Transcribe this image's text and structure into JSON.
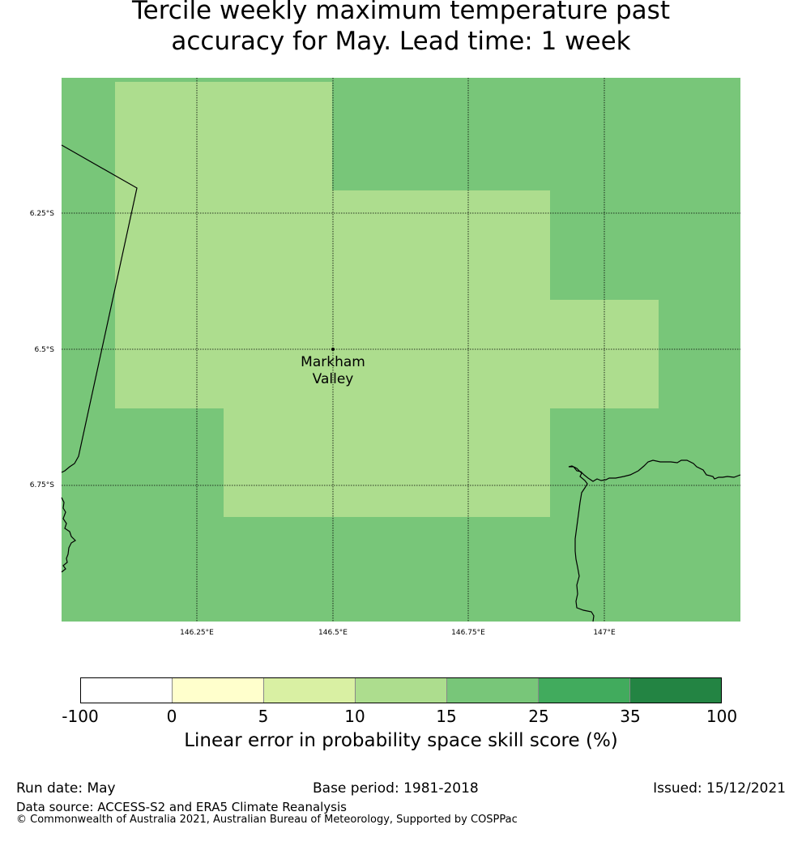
{
  "title_line1": "Tercile weekly maximum temperature past",
  "title_line2": "accuracy for May. Lead time: 1 week",
  "map": {
    "lat_labels": [
      "6.25°S",
      "6.5°S",
      "6.75°S"
    ],
    "lon_labels": [
      "146.25°E",
      "146.5°E",
      "146.75°E",
      "147°E"
    ],
    "location": {
      "name_line1": "Markham",
      "name_line2": "Valley"
    },
    "colors": {
      "background_class": "#78c679",
      "region_class": "#addd8e"
    }
  },
  "colorbar": {
    "ticks": [
      "-100",
      "0",
      "5",
      "10",
      "15",
      "25",
      "35",
      "100"
    ],
    "colors": [
      "#ffffff",
      "#ffffcc",
      "#d9f0a3",
      "#addd8e",
      "#78c679",
      "#41ab5d",
      "#238443"
    ],
    "label": "Linear error in probability space skill score (%)"
  },
  "footer": {
    "run_date": "Run date: May",
    "base_period": "Base period: 1981-2018",
    "issued": "Issued: 15/12/2021",
    "data_source": "Data source: ACCESS-S2 and ERA5 Climate Reanalysis",
    "copyright": "© Commonwealth of Australia 2021, Australian Bureau of Meteorology, Supported by COSPPac"
  }
}
